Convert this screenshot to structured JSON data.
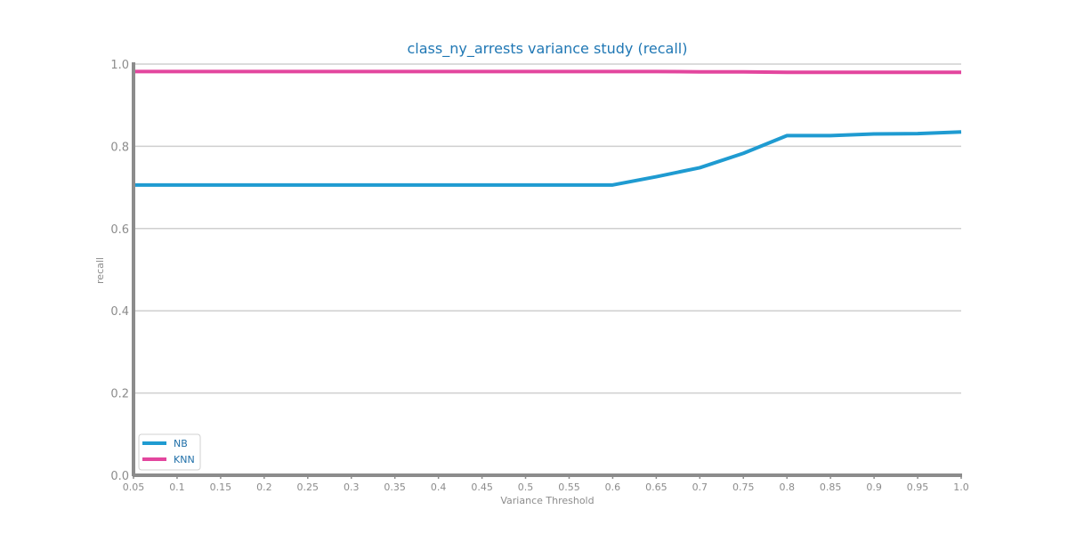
{
  "chart_data": {
    "type": "line",
    "title": "class_ny_arrests variance study (recall)",
    "xlabel": "Variance Threshold",
    "ylabel": "recall",
    "xlim": [
      0.05,
      1.0
    ],
    "ylim": [
      0.0,
      1.0
    ],
    "x_ticks": [
      "0.05",
      "0.1",
      "0.15",
      "0.2",
      "0.25",
      "0.3",
      "0.35",
      "0.4",
      "0.45",
      "0.5",
      "0.55",
      "0.6",
      "0.65",
      "0.7",
      "0.75",
      "0.8",
      "0.85",
      "0.9",
      "0.95",
      "1.0"
    ],
    "y_ticks": [
      "0.0",
      "0.2",
      "0.4",
      "0.6",
      "0.8",
      "1.0"
    ],
    "grid": "horizontal",
    "legend_position": "bottom-left",
    "x": [
      0.05,
      0.1,
      0.15,
      0.2,
      0.25,
      0.3,
      0.35,
      0.4,
      0.45,
      0.5,
      0.55,
      0.6,
      0.65,
      0.7,
      0.75,
      0.8,
      0.85,
      0.9,
      0.95,
      1.0
    ],
    "series": [
      {
        "name": "NB",
        "color": "#1f9bd1",
        "values": [
          0.706,
          0.706,
          0.706,
          0.706,
          0.706,
          0.706,
          0.706,
          0.706,
          0.706,
          0.706,
          0.706,
          0.706,
          0.726,
          0.748,
          0.783,
          0.826,
          0.826,
          0.83,
          0.831,
          0.835
        ]
      },
      {
        "name": "KNN",
        "color": "#e3469e",
        "values": [
          0.982,
          0.982,
          0.982,
          0.982,
          0.982,
          0.982,
          0.982,
          0.982,
          0.982,
          0.982,
          0.982,
          0.982,
          0.982,
          0.981,
          0.981,
          0.98,
          0.98,
          0.98,
          0.98,
          0.98
        ]
      }
    ]
  }
}
